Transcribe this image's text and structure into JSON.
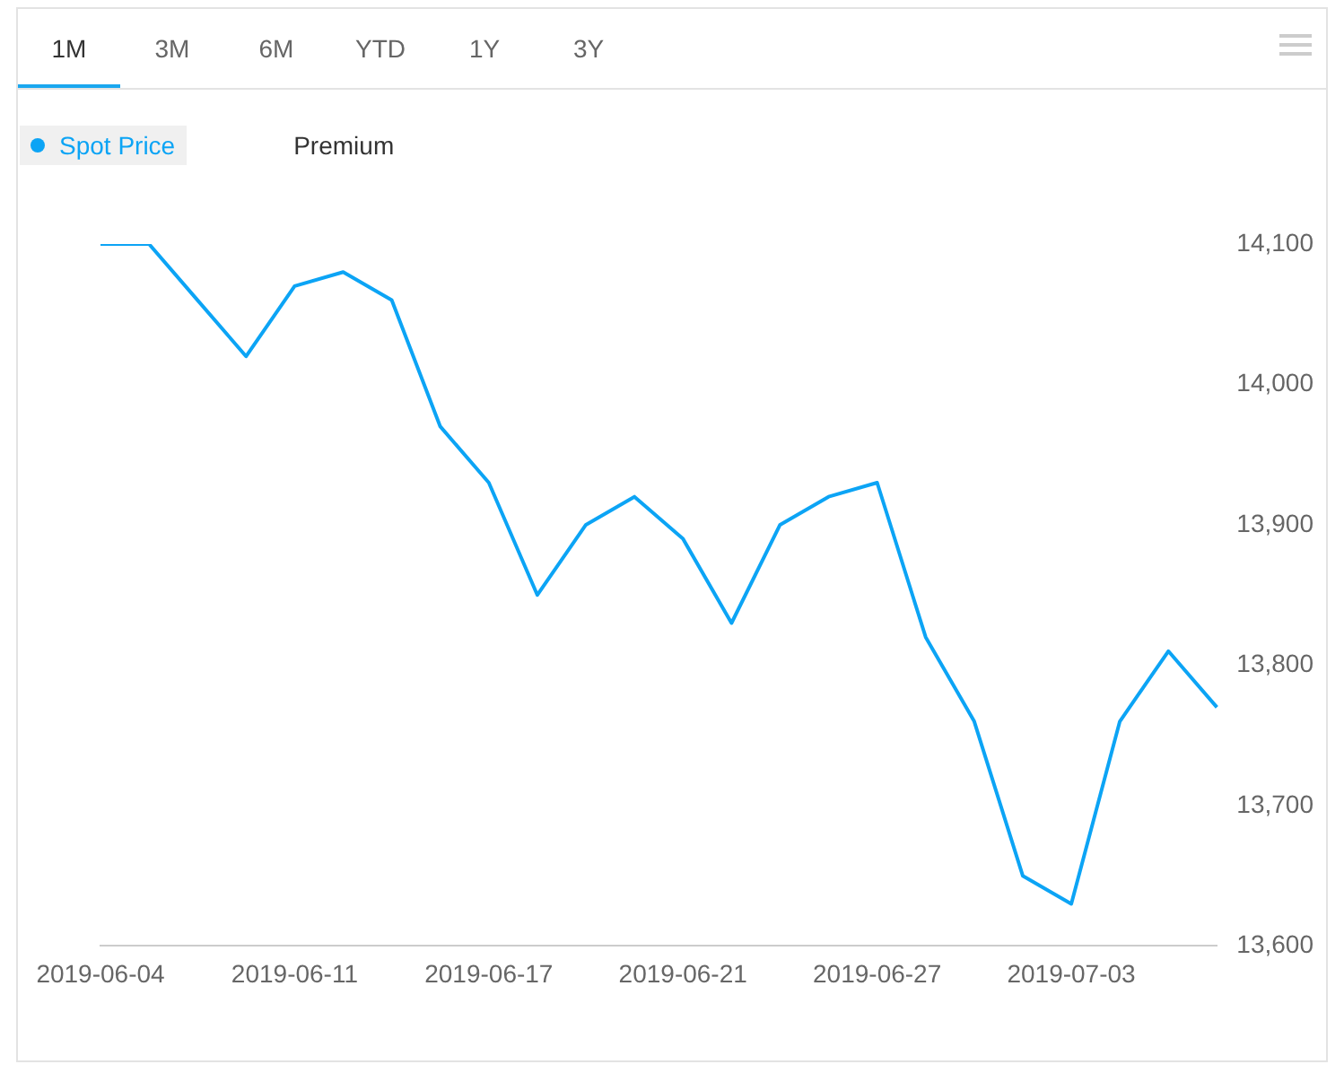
{
  "chart_data": {
    "type": "line",
    "annotations": [
      "1M",
      "3M",
      "6M",
      "YTD",
      "1Y",
      "3Y"
    ],
    "categories": [
      "2019-06-04",
      null,
      null,
      null,
      "2019-06-11",
      null,
      null,
      null,
      "2019-06-17",
      null,
      null,
      null,
      "2019-06-21",
      null,
      null,
      null,
      "2019-06-27",
      null,
      null,
      null,
      "2019-07-03",
      null,
      null,
      null
    ],
    "series": [
      {
        "name": "Spot Price",
        "color": "#0ca4f5",
        "values": [
          14100,
          14100,
          14060,
          14020,
          14070,
          14080,
          14060,
          13970,
          13930,
          13850,
          13900,
          13920,
          13890,
          13830,
          13900,
          13920,
          13930,
          13820,
          13760,
          13650,
          13630,
          13760,
          13810,
          13770
        ]
      },
      {
        "name": "Premium",
        "color": "#333333",
        "values": [
          null,
          null,
          null,
          null,
          null,
          null,
          null,
          null,
          null,
          null,
          null,
          null,
          null,
          null,
          null,
          null,
          null,
          null,
          null,
          null,
          null,
          null,
          null,
          null
        ]
      }
    ],
    "ylim": [
      13600,
      14100
    ],
    "yticks": [
      {
        "value": 13600,
        "label": "13,600"
      },
      {
        "value": 13700,
        "label": "13,700"
      },
      {
        "value": 13800,
        "label": "13,800"
      },
      {
        "value": 13900,
        "label": "13,900"
      },
      {
        "value": 14000,
        "label": "14,000"
      },
      {
        "value": 14100,
        "label": "14,100"
      }
    ],
    "grid": false,
    "legend": "top left",
    "marker": "none",
    "line_style": "solid"
  }
}
